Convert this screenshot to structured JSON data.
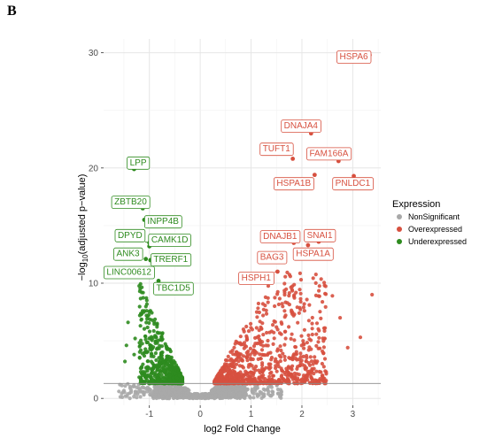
{
  "panel_label": "B",
  "chart_data": {
    "type": "scatter",
    "title": "",
    "xlabel": "log2 Fold Change",
    "ylabel_parts": [
      "−log",
      "10",
      "(adjusted p−value)"
    ],
    "xlim": [
      -1.9,
      3.55
    ],
    "ylim": [
      -0.6,
      31.2
    ],
    "xticks": [
      -1,
      0,
      1,
      2,
      3
    ],
    "yticks": [
      0,
      10,
      20,
      30
    ],
    "grid": true,
    "threshold_y": 1.3,
    "colors": {
      "NonSignificant": "#a8a8a8",
      "Overexpressed": "#d7503f",
      "Underexpressed": "#2e8b1f"
    },
    "legend": {
      "title": "Expression",
      "position": "right",
      "entries": [
        "NonSignificant",
        "Overexpressed",
        "Underexpressed"
      ]
    },
    "labeled_points": [
      {
        "name": "HSPA6",
        "x": 3.33,
        "y": 29.8,
        "group": "Overexpressed",
        "lx": 3.02,
        "ly": 29.7
      },
      {
        "name": "DNAJA4",
        "x": 2.18,
        "y": 23.0,
        "group": "Overexpressed",
        "lx": 1.98,
        "ly": 23.7
      },
      {
        "name": "TUFT1",
        "x": 1.82,
        "y": 20.8,
        "group": "Overexpressed",
        "lx": 1.5,
        "ly": 21.7
      },
      {
        "name": "FAM166A",
        "x": 2.72,
        "y": 20.6,
        "group": "Overexpressed",
        "lx": 2.53,
        "ly": 21.3
      },
      {
        "name": "HSPA1B",
        "x": 2.25,
        "y": 19.4,
        "group": "Overexpressed",
        "lx": 1.84,
        "ly": 18.7
      },
      {
        "name": "PNLDC1",
        "x": 3.02,
        "y": 19.3,
        "group": "Overexpressed",
        "lx": 3.0,
        "ly": 18.7
      },
      {
        "name": "DNAJB1",
        "x": 1.84,
        "y": 13.5,
        "group": "Overexpressed",
        "lx": 1.57,
        "ly": 14.1
      },
      {
        "name": "SNAI1",
        "x": 2.33,
        "y": 13.6,
        "group": "Overexpressed",
        "lx": 2.35,
        "ly": 14.2
      },
      {
        "name": "HSPA1A",
        "x": 2.12,
        "y": 13.3,
        "group": "Overexpressed",
        "lx": 2.22,
        "ly": 12.6
      },
      {
        "name": "BAG3",
        "x": 1.62,
        "y": 12.3,
        "group": "Overexpressed",
        "lx": 1.41,
        "ly": 12.3
      },
      {
        "name": "HSPH1",
        "x": 1.52,
        "y": 11.0,
        "group": "Overexpressed",
        "lx": 1.1,
        "ly": 10.5
      },
      {
        "name": "LPP",
        "x": -1.3,
        "y": 19.9,
        "group": "Underexpressed",
        "lx": -1.22,
        "ly": 20.5
      },
      {
        "name": "ZBTB20",
        "x": -1.13,
        "y": 16.5,
        "group": "Underexpressed",
        "lx": -1.37,
        "ly": 17.1
      },
      {
        "name": "INPP4B",
        "x": -1.1,
        "y": 15.5,
        "group": "Underexpressed",
        "lx": -0.73,
        "ly": 15.4
      },
      {
        "name": "DPYD",
        "x": -1.0,
        "y": 13.5,
        "group": "Underexpressed",
        "lx": -1.38,
        "ly": 14.2
      },
      {
        "name": "CAMK1D",
        "x": -1.0,
        "y": 13.2,
        "group": "Underexpressed",
        "lx": -0.6,
        "ly": 13.8
      },
      {
        "name": "ANK3",
        "x": -1.07,
        "y": 12.1,
        "group": "Underexpressed",
        "lx": -1.42,
        "ly": 12.6
      },
      {
        "name": "TRERF1",
        "x": -0.98,
        "y": 12.0,
        "group": "Underexpressed",
        "lx": -0.58,
        "ly": 12.1
      },
      {
        "name": "LINC00612",
        "x": -1.03,
        "y": 11.1,
        "group": "Underexpressed",
        "lx": -1.4,
        "ly": 11.0
      },
      {
        "name": "TBC1D5",
        "x": -0.82,
        "y": 10.2,
        "group": "Underexpressed",
        "lx": -0.53,
        "ly": 9.6
      }
    ],
    "extra_points": {
      "Overexpressed": [
        [
          3.38,
          9.0
        ],
        [
          3.15,
          5.3
        ],
        [
          2.6,
          8.9
        ],
        [
          2.45,
          5.2
        ],
        [
          2.9,
          4.4
        ],
        [
          2.75,
          7.0
        ],
        [
          2.2,
          6.5
        ],
        [
          2.05,
          7.6
        ]
      ],
      "Underexpressed": [
        [
          -1.42,
          6.6
        ],
        [
          -1.48,
          3.2
        ],
        [
          -1.3,
          3.8
        ],
        [
          -1.28,
          5.2
        ],
        [
          -1.45,
          4.6
        ],
        [
          -1.05,
          8.5
        ],
        [
          -0.95,
          6.8
        ]
      ]
    }
  }
}
